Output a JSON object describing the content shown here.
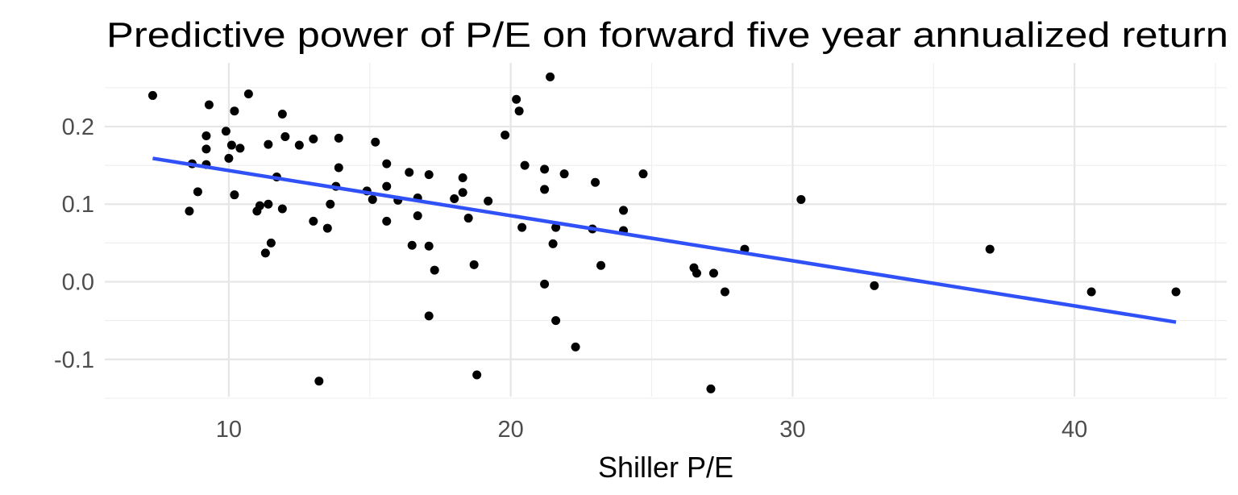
{
  "chart_data": {
    "type": "scatter",
    "title": "Predictive power of P/E  on forward five year annualized return",
    "xlabel": "Shiller P/E",
    "ylabel": "",
    "xlim": [
      5.6,
      45.4
    ],
    "ylim": [
      -0.148,
      0.282
    ],
    "x_ticks": [
      10,
      20,
      30,
      40
    ],
    "x_tick_labels": [
      "10",
      "20",
      "30",
      "40"
    ],
    "x_minor_ticks": [
      15,
      25,
      35,
      45
    ],
    "y_ticks": [
      -0.1,
      0.0,
      0.1,
      0.2
    ],
    "y_tick_labels": [
      "-0.1",
      "0.0",
      "0.1",
      "0.2"
    ],
    "y_minor_ticks": [
      -0.15,
      -0.05,
      0.05,
      0.15,
      0.25
    ],
    "grid": true,
    "legend": "none",
    "point_color": "#000000",
    "line_color": "#3050f8",
    "trend_line": {
      "x": [
        7.3,
        43.6
      ],
      "y": [
        0.159,
        -0.052
      ]
    },
    "points": [
      [
        7.3,
        0.24
      ],
      [
        8.7,
        0.152
      ],
      [
        8.6,
        0.091
      ],
      [
        8.9,
        0.116
      ],
      [
        9.2,
        0.171
      ],
      [
        9.2,
        0.188
      ],
      [
        9.3,
        0.228
      ],
      [
        9.2,
        0.151
      ],
      [
        9.9,
        0.194
      ],
      [
        10.0,
        0.159
      ],
      [
        10.1,
        0.176
      ],
      [
        10.2,
        0.112
      ],
      [
        10.2,
        0.22
      ],
      [
        10.4,
        0.172
      ],
      [
        10.7,
        0.242
      ],
      [
        11.0,
        0.091
      ],
      [
        11.1,
        0.098
      ],
      [
        11.3,
        0.037
      ],
      [
        11.4,
        0.1
      ],
      [
        11.4,
        0.177
      ],
      [
        11.5,
        0.05
      ],
      [
        11.7,
        0.135
      ],
      [
        11.9,
        0.216
      ],
      [
        11.9,
        0.094
      ],
      [
        12.0,
        0.187
      ],
      [
        12.5,
        0.176
      ],
      [
        13.0,
        0.184
      ],
      [
        13.0,
        0.078
      ],
      [
        13.2,
        -0.128
      ],
      [
        13.5,
        0.069
      ],
      [
        13.6,
        0.1
      ],
      [
        13.8,
        0.123
      ],
      [
        13.9,
        0.185
      ],
      [
        13.9,
        0.147
      ],
      [
        14.9,
        0.117
      ],
      [
        15.1,
        0.106
      ],
      [
        15.2,
        0.18
      ],
      [
        15.6,
        0.152
      ],
      [
        15.6,
        0.123
      ],
      [
        15.6,
        0.078
      ],
      [
        16.0,
        0.105
      ],
      [
        16.4,
        0.141
      ],
      [
        16.5,
        0.047
      ],
      [
        16.7,
        0.108
      ],
      [
        16.7,
        0.085
      ],
      [
        17.1,
        0.138
      ],
      [
        17.1,
        0.046
      ],
      [
        17.1,
        -0.044
      ],
      [
        17.3,
        0.015
      ],
      [
        18.0,
        0.107
      ],
      [
        18.3,
        0.134
      ],
      [
        18.3,
        0.115
      ],
      [
        18.5,
        0.082
      ],
      [
        18.7,
        0.022
      ],
      [
        18.8,
        -0.12
      ],
      [
        19.2,
        0.104
      ],
      [
        19.8,
        0.189
      ],
      [
        20.2,
        0.235
      ],
      [
        20.3,
        0.22
      ],
      [
        20.4,
        0.07
      ],
      [
        20.5,
        0.15
      ],
      [
        21.2,
        0.145
      ],
      [
        21.2,
        0.119
      ],
      [
        21.2,
        -0.003
      ],
      [
        21.4,
        0.264
      ],
      [
        21.5,
        0.049
      ],
      [
        21.6,
        0.07
      ],
      [
        21.6,
        -0.05
      ],
      [
        21.9,
        0.139
      ],
      [
        22.3,
        -0.084
      ],
      [
        22.9,
        0.068
      ],
      [
        23.0,
        0.128
      ],
      [
        23.2,
        0.021
      ],
      [
        24.0,
        0.092
      ],
      [
        24.0,
        0.066
      ],
      [
        24.7,
        0.139
      ],
      [
        26.5,
        0.018
      ],
      [
        26.6,
        0.011
      ],
      [
        27.1,
        -0.138
      ],
      [
        27.2,
        0.011
      ],
      [
        27.6,
        -0.013
      ],
      [
        28.3,
        0.042
      ],
      [
        30.3,
        0.106
      ],
      [
        32.9,
        -0.005
      ],
      [
        37.0,
        0.042
      ],
      [
        40.6,
        -0.013
      ],
      [
        43.6,
        -0.013
      ]
    ]
  }
}
